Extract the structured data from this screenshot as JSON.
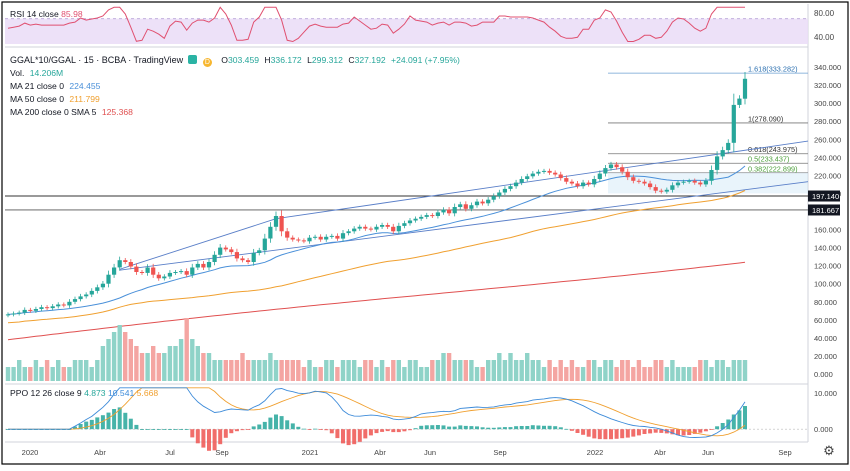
{
  "colors": {
    "up": "#26a69a",
    "down": "#ef5350",
    "ma21": "#4a90d9",
    "ma50": "#f0a030",
    "ma200": "#e05050",
    "rsi": "#e05070",
    "rsi_band": "#eadcf7",
    "ppo": "#3d8bd9",
    "ppo_signal": "#f0a030"
  },
  "rsi": {
    "label": "RSI 14 close",
    "value": "85.98",
    "scale": [
      "80.00",
      "40.00"
    ]
  },
  "header": {
    "symbol": "GGAL*10/GGAL · 15 · BCBA · TradingView",
    "o_label": "O",
    "o": "303.459",
    "h_label": "H",
    "h": "336.172",
    "l_label": "L",
    "l": "299.312",
    "c_label": "C",
    "c": "327.192",
    "change": "+24.091 (+7.95%)"
  },
  "indicators": [
    {
      "label": "Vol.",
      "value": "14.206M"
    },
    {
      "label": "MA 21 close 0",
      "value": "224.455"
    },
    {
      "label": "MA 50 close 0",
      "value": "211.799"
    },
    {
      "label": "MA 200 close 0 SMA 5",
      "value": "125.368"
    }
  ],
  "price_scale": [
    "340.000",
    "320.000",
    "300.000",
    "280.000",
    "260.000",
    "240.000",
    "220.000",
    "200.000",
    "160.000",
    "140.000",
    "120.000",
    "100.000",
    "80.000",
    "60.000",
    "40.000",
    "20.000",
    "0.000"
  ],
  "fib_labels": [
    {
      "text": "1.618(333.282)",
      "value": 333.282
    },
    {
      "text": "1(278.090)",
      "value": 278.09
    },
    {
      "text": "0.618(243.975)",
      "value": 243.975
    },
    {
      "text": "0.5(233.437)",
      "value": 233.437
    },
    {
      "text": "0.382(222.899)",
      "value": 222.899
    }
  ],
  "price_tags": [
    {
      "text": "197.140",
      "value": 197.14
    },
    {
      "text": "181.667",
      "value": 181.667
    }
  ],
  "ppo": {
    "label": "PPO 12 26 close 9",
    "v1": "4.873",
    "v2": "10.541",
    "v3": "5.668",
    "scale": [
      "10.000",
      "0.000"
    ]
  },
  "time_axis": [
    "2020",
    "Abr",
    "Jul",
    "Sep",
    "2021",
    "Abr",
    "Jun",
    "Sep",
    "2022",
    "Abr",
    "Jun",
    "Sep"
  ],
  "chart_data": {
    "type": "candlestick",
    "title": "GGAL*10/GGAL · 15 · BCBA · TradingView",
    "x_start": "2020-01",
    "x_step": "week",
    "ylim": [
      0,
      350
    ],
    "closes": [
      66,
      67,
      68,
      71,
      70,
      72,
      74,
      73,
      75,
      77,
      76,
      80,
      83,
      86,
      88,
      92,
      96,
      100,
      110,
      118,
      126,
      124,
      119,
      113,
      112,
      118,
      110,
      106,
      108,
      112,
      113,
      114,
      110,
      118,
      122,
      118,
      124,
      132,
      140,
      138,
      135,
      128,
      126,
      124,
      134,
      137,
      150,
      163,
      175,
      158,
      151,
      149,
      148,
      147,
      151,
      152,
      149,
      152,
      153,
      150,
      156,
      158,
      161,
      163,
      161,
      160,
      163,
      165,
      163,
      158,
      164,
      167,
      170,
      172,
      174,
      176,
      175,
      179,
      182,
      178,
      185,
      188,
      183,
      187,
      191,
      189,
      193,
      197,
      201,
      205,
      208,
      212,
      216,
      219,
      222,
      224,
      225,
      223,
      221,
      217,
      213,
      211,
      208,
      212,
      210,
      216,
      222,
      228,
      232,
      229,
      224,
      218,
      214,
      213,
      211,
      207,
      203,
      202,
      204,
      209,
      212,
      213,
      214,
      212,
      210,
      214,
      226,
      241,
      248,
      256,
      298,
      305,
      327
    ],
    "volume_levels": [
      2,
      2,
      3,
      2,
      2,
      3,
      2,
      3,
      2,
      3,
      2,
      2,
      3,
      3,
      3,
      2,
      3,
      5,
      6,
      7,
      8,
      7,
      6,
      5,
      4,
      4,
      5,
      4,
      4,
      5,
      5,
      6,
      9,
      6,
      5,
      4,
      4,
      3,
      3,
      3,
      3,
      3,
      4,
      3,
      3,
      3,
      3,
      4,
      3,
      3,
      3,
      3,
      3,
      2,
      3,
      2,
      2,
      3,
      3,
      2,
      3,
      3,
      3,
      2,
      3,
      3,
      2,
      3,
      2,
      3,
      3,
      2,
      3,
      3,
      2,
      2,
      3,
      3,
      4,
      4,
      3,
      3,
      3,
      3,
      2,
      2,
      3,
      3,
      4,
      3,
      4,
      3,
      3,
      4,
      3,
      3,
      2,
      3,
      2,
      3,
      2,
      3,
      2,
      2,
      3,
      3,
      2,
      3,
      3,
      2,
      3,
      3,
      2,
      3,
      2,
      2,
      3,
      3,
      2,
      3,
      2,
      2,
      2,
      2,
      3,
      3,
      2,
      3,
      3,
      2,
      3,
      3,
      3
    ],
    "series": [
      {
        "name": "MA 21 close 0",
        "last": 224.455
      },
      {
        "name": "MA 50 close 0",
        "last": 211.799
      },
      {
        "name": "MA 200 close 0 SMA 5",
        "last": 125.368
      }
    ],
    "rsi_range": [
      30,
      90
    ],
    "ppo_range": [
      -3,
      12
    ]
  }
}
